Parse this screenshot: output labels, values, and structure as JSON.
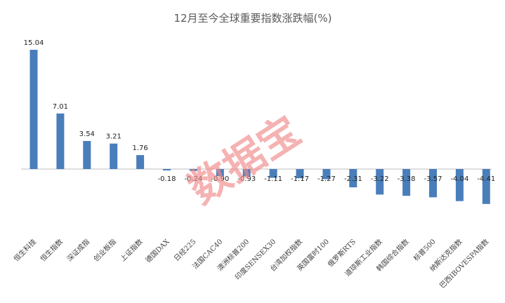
{
  "chart_data": {
    "type": "bar",
    "title": "12月至今全球重要指数涨跌幅(%)",
    "categories": [
      "恒生科技",
      "恒生指数",
      "深证成指",
      "创业板指",
      "上证指数",
      "德国DAX",
      "日经225",
      "法国CAC40",
      "澳洲标普200",
      "印度SENSEX30",
      "台湾加权指数",
      "英国富时100",
      "俄罗斯RTS",
      "道琼斯工业指数",
      "韩国综合指数",
      "标普500",
      "纳斯达克指数",
      "巴西IBOVESPA指数"
    ],
    "values": [
      15.04,
      7.01,
      3.54,
      3.21,
      1.76,
      -0.18,
      -0.24,
      -0.9,
      -0.93,
      -1.11,
      -1.17,
      -1.27,
      -2.31,
      -3.22,
      -3.38,
      -3.57,
      -4.04,
      -4.41
    ],
    "value_labels": [
      "15.04",
      "7.01",
      "3.54",
      "3.21",
      "1.76",
      "-0.18",
      "-0.24",
      "-0.90",
      "-0.93",
      "-1.11",
      "-1.17",
      "-1.27",
      "-2.31",
      "-3.22",
      "-3.38",
      "-3.57",
      "-4.04",
      "-4.41"
    ],
    "ylim": [
      -6,
      18
    ],
    "grid": false,
    "legend": "none",
    "bar_color": "#4a7ebb",
    "watermark": "数据宝"
  }
}
